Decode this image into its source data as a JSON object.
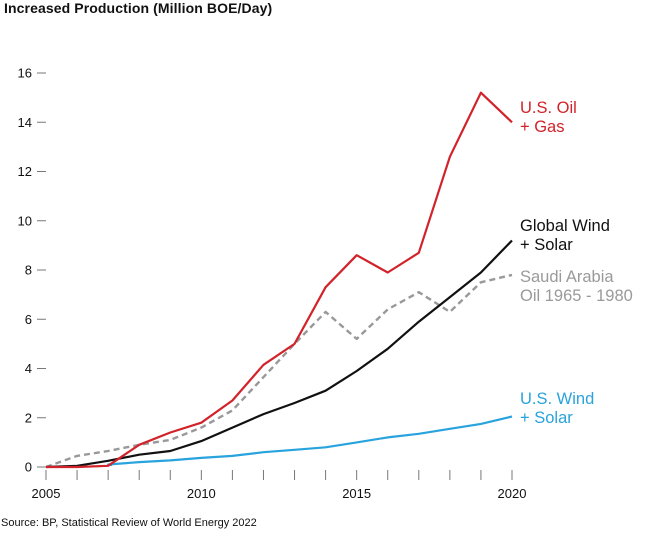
{
  "chart_data": {
    "type": "line",
    "title": "Increased Production (Million BOE/Day)",
    "source": "Source: BP, Statistical Review of World Energy 2022",
    "xlabel": "",
    "ylabel": "",
    "x": [
      2005,
      2006,
      2007,
      2008,
      2009,
      2010,
      2011,
      2012,
      2013,
      2014,
      2015,
      2016,
      2017,
      2018,
      2019,
      2020
    ],
    "xlim": [
      2005,
      2020
    ],
    "ylim": [
      0,
      16
    ],
    "x_ticks": [
      2005,
      2006,
      2007,
      2008,
      2009,
      2010,
      2011,
      2012,
      2013,
      2014,
      2015,
      2016,
      2017,
      2018,
      2019,
      2020
    ],
    "x_tick_labels": [
      "2005",
      "2010",
      "2015",
      "2020"
    ],
    "x_tick_label_values": [
      2005,
      2010,
      2015,
      2020
    ],
    "y_ticks": [
      0,
      2,
      4,
      6,
      8,
      10,
      12,
      14,
      16
    ],
    "y_tick_labels": [
      "0",
      "2",
      "4",
      "6",
      "8",
      "10",
      "12",
      "14",
      "16"
    ],
    "grid": false,
    "legend": "inline-right",
    "series": [
      {
        "name": "U.S. Oil + Gas",
        "label_lines": [
          "U.S. Oil",
          "+ Gas"
        ],
        "color": "#d2232a",
        "dashed": false,
        "values": [
          0,
          0.0,
          0.05,
          0.9,
          1.4,
          1.8,
          2.7,
          4.15,
          5.0,
          7.3,
          8.6,
          7.9,
          8.7,
          12.6,
          15.2,
          14.0
        ]
      },
      {
        "name": "Global Wind + Solar",
        "label_lines": [
          "Global Wind",
          "+ Solar"
        ],
        "color": "#111111",
        "dashed": false,
        "values": [
          0,
          0.05,
          0.25,
          0.5,
          0.65,
          1.05,
          1.6,
          2.15,
          2.6,
          3.1,
          3.9,
          4.8,
          5.9,
          6.9,
          7.9,
          9.2
        ]
      },
      {
        "name": "Saudi Arabia Oil 1965-1980",
        "label_lines": [
          "Saudi Arabia",
          "Oil 1965 - 1980"
        ],
        "color": "#999999",
        "dashed": true,
        "values": [
          0,
          0.45,
          0.65,
          0.9,
          1.1,
          1.6,
          2.3,
          3.65,
          5.0,
          6.3,
          5.2,
          6.4,
          7.1,
          6.3,
          7.5,
          7.8
        ]
      },
      {
        "name": "U.S. Wind + Solar",
        "label_lines": [
          "U.S. Wind",
          "+ Solar"
        ],
        "color": "#29a3dd",
        "dashed": false,
        "values": [
          null,
          null,
          0.1,
          0.2,
          0.27,
          0.37,
          0.45,
          0.6,
          0.7,
          0.8,
          1.0,
          1.2,
          1.35,
          1.55,
          1.75,
          2.05
        ]
      }
    ]
  }
}
